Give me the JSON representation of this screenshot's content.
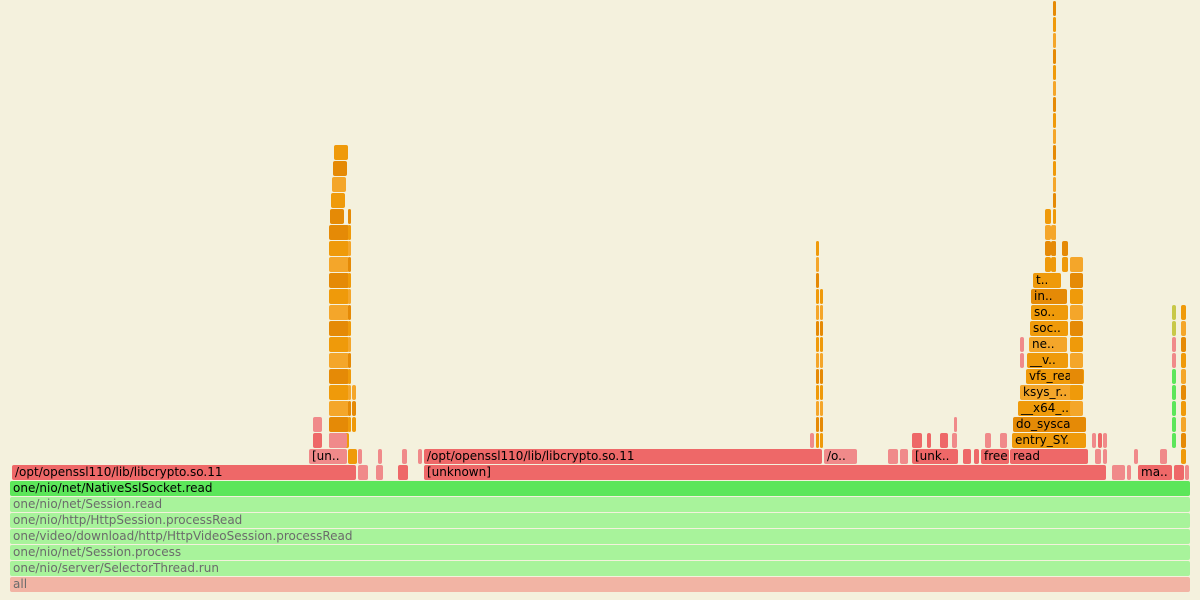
{
  "labels": {
    "all": "all",
    "selector_run": "one/nio/server/SelectorThread.run",
    "session_process": "one/nio/net/Session.process",
    "video_process_read": "one/video/download/http/HttpVideoSession.processRead",
    "http_process_read": "one/nio/http/HttpSession.processRead",
    "session_read": "one/nio/net/Session.read",
    "ssl_read": "one/nio/net/NativeSslSocket.read",
    "libcrypto_left": "/opt/openssl110/lib/libcrypto.so.11",
    "unknown_mid": "[unknown]",
    "ma": "ma..",
    "un_left": "[un..",
    "libcrypto_mid": "/opt/openssl110/lib/libcrypto.so.11",
    "o_short": "/o..",
    "unk_mid": "[unk..",
    "free": "free",
    "read": "read",
    "entry_sy": "entry_SY..",
    "do_syscal": "do_syscal..",
    "x64": "__x64_..",
    "ksys": "ksys_r..",
    "vfs_read": "vfs_read",
    "v_short": "__v..",
    "ne": "ne..",
    "soc": "soc..",
    "so": "so..",
    "in": "in..",
    "t": "t.."
  },
  "colors": {
    "background": "#f4f1dd",
    "root": "#f2b4a4",
    "java_interpreted": "#a8f39b",
    "java_compiled": "#5ce65a",
    "native": "#ee6868",
    "native_light": "#f08a8a",
    "kernel": "#ef9a0a",
    "kernel_dark": "#e58a06",
    "kernel_light": "#f4a62a",
    "inlined": "#c8c848"
  }
}
